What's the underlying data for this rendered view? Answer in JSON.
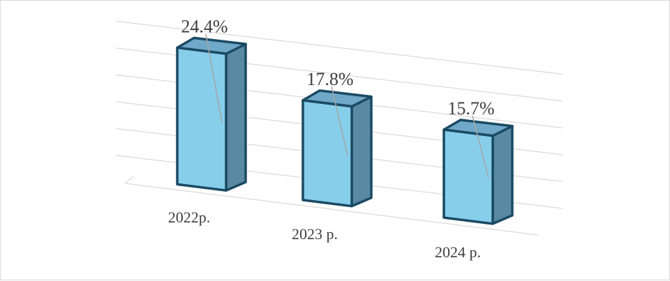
{
  "chart_data": {
    "type": "bar",
    "style": "3d-column",
    "categories": [
      "2022р.",
      "2023 р.",
      "2024 р."
    ],
    "values": [
      24.4,
      17.8,
      15.7
    ],
    "data_labels": [
      "24.4%",
      "17.8%",
      "15.7%"
    ],
    "title": "",
    "xlabel": "",
    "ylabel": "",
    "ylim": [
      0,
      30
    ],
    "grid": true,
    "legend": "none"
  },
  "colors": {
    "bar_front": "#87ceeb",
    "bar_side": "#5a8aa3",
    "bar_top": "#6fa8c8",
    "bar_outline": "#1b4a63",
    "grid": "#d9d9d9",
    "leader": "#a6a6a6"
  }
}
